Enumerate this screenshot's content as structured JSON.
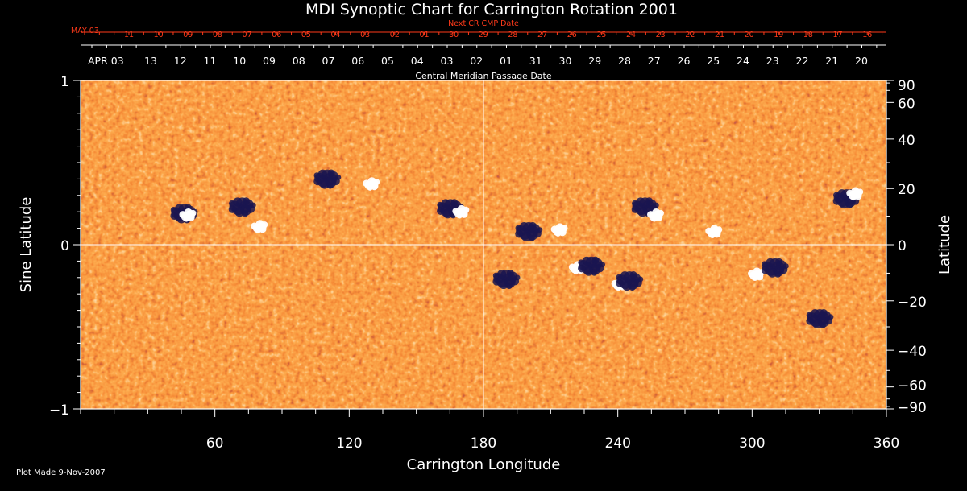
{
  "title": "MDI Synoptic Chart for Carrington Rotation 2001",
  "next_cr_label": "Next CR CMP Date",
  "next_cr_dates": [
    "MAY 03",
    "11",
    "10",
    "09",
    "08",
    "07",
    "06",
    "05",
    "04",
    "03",
    "02",
    "01",
    "30",
    "29",
    "28",
    "27",
    "26",
    "25",
    "24",
    "23",
    "22",
    "21",
    "20",
    "19",
    "18",
    "17",
    "16"
  ],
  "cmp_dates": [
    "APR 03",
    "13",
    "12",
    "11",
    "10",
    "09",
    "08",
    "07",
    "06",
    "05",
    "04",
    "03",
    "02",
    "01",
    "31",
    "30",
    "29",
    "28",
    "27",
    "26",
    "25",
    "24",
    "23",
    "22",
    "21",
    "20"
  ],
  "cmp_label": "Central Meridian Passage Date",
  "footer": "Plot Made  9-Nov-2007",
  "colors": {
    "background": "#000000",
    "accent_red": "#ff3a1a",
    "field_base": "#f25618",
    "positive": "#ffffff",
    "negative": "#1a1550"
  },
  "chart_data": {
    "type": "heatmap",
    "title": "MDI Synoptic Chart for Carrington Rotation 2001",
    "xlabel": "Carrington Longitude",
    "ylabel": "Sine Latitude",
    "y2label": "Latitude",
    "xlim": [
      0,
      360
    ],
    "ylim": [
      -1,
      1
    ],
    "xticks": [
      60,
      120,
      180,
      240,
      300,
      360
    ],
    "yticks": [
      -1,
      0,
      1
    ],
    "y2ticks": [
      90,
      60,
      40,
      20,
      0,
      -20,
      -40,
      -60,
      -90
    ],
    "grid_lines": {
      "x": [
        180
      ],
      "y": [
        0
      ]
    },
    "regions": [
      {
        "lon": 46,
        "sinlat": 0.19,
        "polarity": "negative"
      },
      {
        "lon": 48,
        "sinlat": 0.18,
        "polarity": "positive"
      },
      {
        "lon": 72,
        "sinlat": 0.23,
        "polarity": "negative"
      },
      {
        "lon": 80,
        "sinlat": 0.11,
        "polarity": "positive"
      },
      {
        "lon": 110,
        "sinlat": 0.4,
        "polarity": "negative"
      },
      {
        "lon": 130,
        "sinlat": 0.37,
        "polarity": "positive"
      },
      {
        "lon": 165,
        "sinlat": 0.22,
        "polarity": "negative"
      },
      {
        "lon": 170,
        "sinlat": 0.2,
        "polarity": "positive"
      },
      {
        "lon": 190,
        "sinlat": -0.21,
        "polarity": "negative"
      },
      {
        "lon": 200,
        "sinlat": 0.08,
        "polarity": "negative"
      },
      {
        "lon": 214,
        "sinlat": 0.09,
        "polarity": "positive"
      },
      {
        "lon": 222,
        "sinlat": -0.14,
        "polarity": "positive"
      },
      {
        "lon": 228,
        "sinlat": -0.13,
        "polarity": "negative"
      },
      {
        "lon": 241,
        "sinlat": -0.24,
        "polarity": "positive"
      },
      {
        "lon": 245,
        "sinlat": -0.22,
        "polarity": "negative"
      },
      {
        "lon": 252,
        "sinlat": 0.23,
        "polarity": "negative"
      },
      {
        "lon": 257,
        "sinlat": 0.18,
        "polarity": "positive"
      },
      {
        "lon": 283,
        "sinlat": 0.08,
        "polarity": "positive"
      },
      {
        "lon": 302,
        "sinlat": -0.18,
        "polarity": "positive"
      },
      {
        "lon": 310,
        "sinlat": -0.14,
        "polarity": "negative"
      },
      {
        "lon": 330,
        "sinlat": -0.45,
        "polarity": "negative"
      },
      {
        "lon": 342,
        "sinlat": 0.28,
        "polarity": "negative"
      },
      {
        "lon": 346,
        "sinlat": 0.31,
        "polarity": "positive"
      }
    ]
  }
}
